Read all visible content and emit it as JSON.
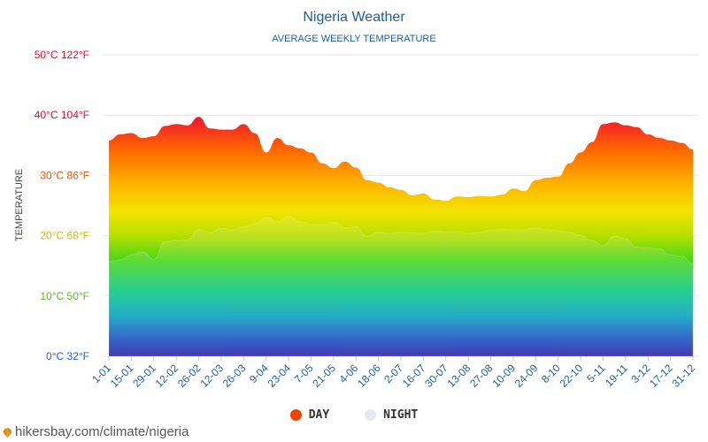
{
  "chart_data": {
    "type": "area",
    "title": "Nigeria Weather",
    "subtitle": "AVERAGE WEEKLY TEMPERATURE",
    "ylabel": "TEMPERATURE",
    "ylim": [
      0,
      50
    ],
    "y_ticks": [
      {
        "c": 0,
        "label": "0°C 32°F",
        "color": "#1f5fcf"
      },
      {
        "c": 10,
        "label": "10°C 50°F",
        "color": "#5bbf1a"
      },
      {
        "c": 20,
        "label": "20°C 68°F",
        "color": "#e2b400"
      },
      {
        "c": 30,
        "label": "30°C 86°F",
        "color": "#ee5500"
      },
      {
        "c": 40,
        "label": "40°C 104°F",
        "color": "#d81030"
      },
      {
        "c": 50,
        "label": "50°C 122°F",
        "color": "#d81030"
      }
    ],
    "x_labels": [
      "1-01",
      "15-01",
      "29-01",
      "12-02",
      "26-02",
      "12-03",
      "26-03",
      "9-04",
      "23-04",
      "7-05",
      "21-05",
      "4-06",
      "18-06",
      "2-07",
      "16-07",
      "30-07",
      "13-08",
      "27-08",
      "10-09",
      "24-09",
      "8-10",
      "22-10",
      "5-11",
      "19-11",
      "3-12",
      "17-12",
      "31-12"
    ],
    "series": [
      {
        "name": "DAY",
        "values": [
          35.8,
          36.8,
          37.0,
          36.2,
          36.5,
          38.2,
          38.5,
          38.3,
          39.7,
          37.8,
          37.6,
          37.6,
          38.5,
          37.0,
          33.8,
          36.2,
          35.0,
          34.5,
          33.8,
          32.0,
          31.2,
          32.3,
          31.3,
          29.2,
          28.8,
          28.0,
          27.6,
          26.7,
          27.0,
          26.0,
          25.8,
          26.5,
          26.4,
          26.6,
          26.5,
          26.8,
          27.8,
          27.4,
          29.2,
          29.6,
          29.8,
          32.0,
          33.8,
          35.5,
          38.5,
          38.8,
          38.3,
          38.0,
          36.8,
          36.2,
          35.8,
          35.4,
          34.3
        ]
      },
      {
        "name": "NIGHT",
        "values": [
          15.8,
          16.0,
          16.8,
          17.3,
          16.1,
          19.0,
          19.2,
          19.3,
          21.0,
          20.5,
          21.2,
          21.0,
          21.5,
          22.0,
          23.0,
          22.3,
          23.2,
          22.3,
          21.9,
          21.8,
          22.2,
          21.3,
          21.5,
          19.9,
          20.6,
          20.4,
          20.6,
          20.5,
          20.4,
          20.8,
          20.6,
          20.7,
          20.4,
          20.6,
          20.9,
          21.1,
          21.0,
          21.0,
          21.3,
          21.0,
          20.8,
          20.6,
          20.0,
          19.2,
          18.4,
          19.9,
          19.5,
          18.1,
          18.0,
          17.8,
          16.8,
          16.6,
          15.4
        ]
      }
    ],
    "grid": true,
    "legend_position": "bottom-center"
  },
  "legend": [
    {
      "label": "DAY",
      "color": "#ee4400"
    },
    {
      "label": "NIGHT",
      "color": "#e4e8ef"
    }
  ],
  "source": "hikersbay.com/climate/nigeria"
}
